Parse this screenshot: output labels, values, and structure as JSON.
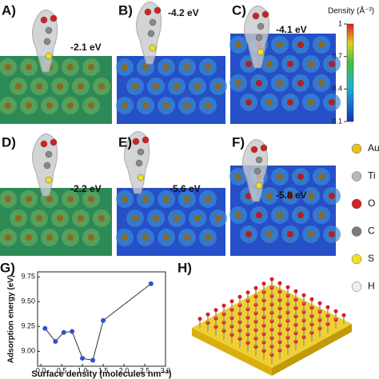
{
  "surface_panels": [
    {
      "label": "A)",
      "energy": "-2.1 eV"
    },
    {
      "label": "B)",
      "energy": "-4.2 eV"
    },
    {
      "label": "C)",
      "energy": "-4.1 eV"
    },
    {
      "label": "D)",
      "energy": "-2.2 eV"
    },
    {
      "label": "E)",
      "energy": "-5.6 eV"
    },
    {
      "label": "F)",
      "energy": "-5.8 eV"
    }
  ],
  "colorbar": {
    "label": "Density (Å⁻³)",
    "lim": [
      0.1,
      1
    ],
    "ticks": [
      1,
      0.7,
      0.4,
      0.1
    ]
  },
  "legend": {
    "items": [
      {
        "name": "Au",
        "color": "#e8c020"
      },
      {
        "name": "Ti",
        "color": "#b8b8b8"
      },
      {
        "name": "O",
        "color": "#d42020"
      },
      {
        "name": "C",
        "color": "#7a7a7a"
      },
      {
        "name": "S",
        "color": "#f0e020"
      },
      {
        "name": "H",
        "color": "#eeeeee"
      }
    ]
  },
  "figure_labels": {
    "g": "G)",
    "h": "H)"
  },
  "chart_data": {
    "type": "line",
    "x_label": "Surface density (molecules nm⁻²)",
    "y_label": "Adsorption energy (eV)",
    "x": [
      0.1,
      0.35,
      0.55,
      0.75,
      1.0,
      1.25,
      1.5,
      2.65
    ],
    "series": [
      {
        "color": "#3050d0",
        "values": [
          9.23,
          9.1,
          9.19,
          9.2,
          8.93,
          8.91,
          9.31,
          9.68
        ]
      }
    ],
    "xlim": [
      -0.08,
      3.0
    ],
    "xticks": [
      {
        "value": 0,
        "label": "0.0"
      },
      {
        "value": 0.5,
        "label": "0.5"
      },
      {
        "value": 1,
        "label": "1.0"
      },
      {
        "value": 1.5,
        "label": "1.5"
      },
      {
        "value": 2,
        "label": "2.0"
      },
      {
        "value": 2.5,
        "label": "2.5"
      },
      {
        "value": 3,
        "label": "3.0"
      }
    ],
    "ylim": [
      8.85,
      9.8
    ],
    "yticks": [
      {
        "value": 9,
        "label": "9.00"
      },
      {
        "value": 9.25,
        "label": "9.25"
      },
      {
        "value": 9.5,
        "label": "9.50"
      },
      {
        "value": 9.75,
        "label": "9.75"
      }
    ]
  }
}
